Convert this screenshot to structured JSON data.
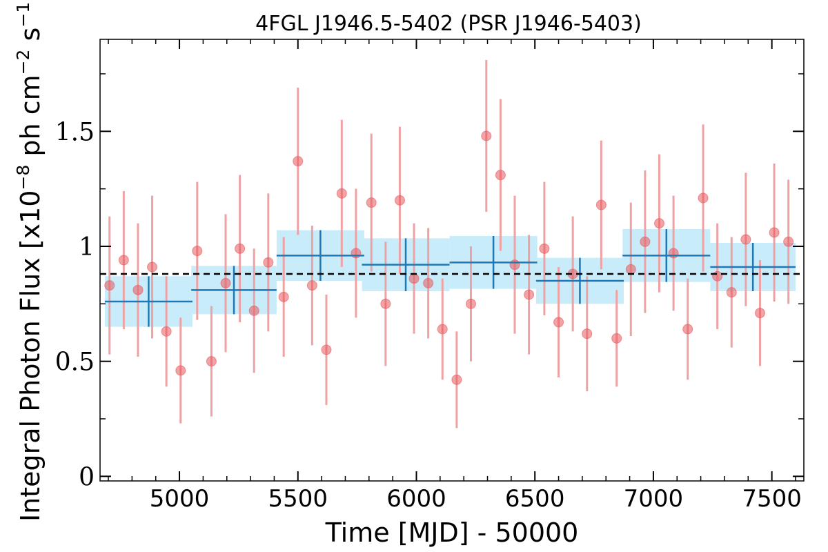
{
  "chart_data": {
    "type": "scatter",
    "title": "4FGL J1946.5-5402 (PSR J1946-5403)",
    "xlabel": "Time [MJD] - 50000",
    "ylabel_prefix": "Integral Photon Flux [x10",
    "ylabel_exp1": "−8",
    "ylabel_mid": " ph cm",
    "ylabel_exp2": "−2",
    "ylabel_mid2": " s",
    "ylabel_exp3": "−1",
    "ylabel_suffix": "]",
    "xlim": [
      4665,
      7635
    ],
    "ylim": [
      -0.02,
      1.9
    ],
    "x_ticks": [
      5000,
      5500,
      6000,
      6500,
      7000,
      7500
    ],
    "x_tick_labels": [
      "5000",
      "5500",
      "6000",
      "6500",
      "7000",
      "7500"
    ],
    "x_minor_ticks": [
      4700,
      4800,
      4900,
      5100,
      5200,
      5300,
      5400,
      5600,
      5700,
      5800,
      5900,
      6100,
      6200,
      6300,
      6400,
      6600,
      6700,
      6800,
      6900,
      7100,
      7200,
      7300,
      7400,
      7600
    ],
    "y_ticks": [
      0,
      0.5,
      1,
      1.5
    ],
    "y_tick_labels": [
      "0",
      "0.5",
      "1",
      "1.5"
    ],
    "y_minor_ticks": [
      0.25,
      0.75,
      1.25,
      1.75
    ],
    "grid": false,
    "mean_flux": 0.88,
    "colors": {
      "points": "#e8585c",
      "point_errors": "#eea2a4",
      "bins": "#1f77b4",
      "band": "#c9ecfb",
      "mean_line": "#000000"
    },
    "series": [
      {
        "type": "points",
        "x": [
          4705,
          4765,
          4825,
          4885,
          4945,
          5005,
          5075,
          5135,
          5195,
          5255,
          5315,
          5375,
          5440,
          5500,
          5560,
          5620,
          5685,
          5745,
          5810,
          5870,
          5930,
          5990,
          6050,
          6110,
          6170,
          6230,
          6295,
          6355,
          6415,
          6475,
          6540,
          6600,
          6660,
          6720,
          6780,
          6845,
          6905,
          6965,
          7025,
          7085,
          7145,
          7210,
          7270,
          7330,
          7390,
          7450,
          7510,
          7570
        ],
        "y": [
          0.83,
          0.94,
          0.81,
          0.91,
          0.63,
          0.46,
          0.98,
          0.5,
          0.84,
          0.99,
          0.72,
          0.93,
          0.78,
          1.37,
          0.83,
          0.55,
          1.23,
          0.97,
          1.19,
          0.75,
          1.2,
          0.86,
          0.84,
          0.64,
          0.42,
          0.75,
          1.48,
          1.31,
          0.92,
          0.79,
          0.99,
          0.67,
          0.88,
          0.62,
          1.18,
          0.6,
          0.9,
          1.02,
          1.1,
          0.97,
          0.64,
          1.21,
          0.87,
          0.8,
          1.03,
          0.71,
          1.06,
          1.02
        ],
        "yerr": [
          0.3,
          0.3,
          0.29,
          0.31,
          0.24,
          0.23,
          0.3,
          0.24,
          0.3,
          0.32,
          0.27,
          0.3,
          0.26,
          0.32,
          0.26,
          0.24,
          0.32,
          0.28,
          0.3,
          0.27,
          0.32,
          0.24,
          0.24,
          0.22,
          0.21,
          0.25,
          0.33,
          0.33,
          0.3,
          0.26,
          0.29,
          0.24,
          0.25,
          0.25,
          0.28,
          0.21,
          0.29,
          0.31,
          0.3,
          0.25,
          0.22,
          0.32,
          0.23,
          0.24,
          0.29,
          0.23,
          0.3,
          0.27
        ]
      },
      {
        "type": "bins",
        "x": [
          4870,
          5230,
          5595,
          5955,
          6325,
          6690,
          7055,
          7420
        ],
        "xerr": [
          185,
          180,
          185,
          185,
          185,
          185,
          185,
          180
        ],
        "y": [
          0.76,
          0.81,
          0.96,
          0.92,
          0.93,
          0.85,
          0.96,
          0.91
        ],
        "yerr": [
          0.11,
          0.105,
          0.11,
          0.115,
          0.115,
          0.1,
          0.115,
          0.105
        ]
      }
    ]
  }
}
